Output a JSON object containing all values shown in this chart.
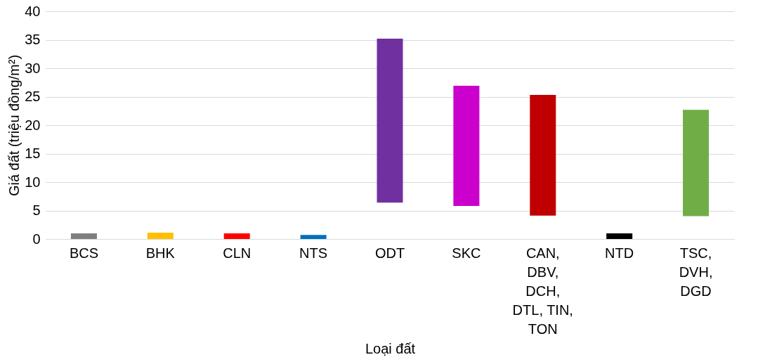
{
  "chart_data": {
    "type": "bar",
    "xlabel": "Loại đất",
    "ylabel": "Giá đất (triệu đồng/m²)",
    "categories": [
      "BCS",
      "BHK",
      "CLN",
      "NTS",
      "ODT",
      "SKC",
      "CAN, DBV, DCH, DTL, TIN, TON",
      "NTD",
      "TSC, DVH, DGD"
    ],
    "values": [
      1.0,
      1.1,
      1.0,
      0.7,
      28.8,
      21.1,
      21.2,
      1.0,
      18.7
    ],
    "base": [
      0,
      0,
      0,
      0,
      6.4,
      5.8,
      4.1,
      0,
      4.0
    ],
    "colors": [
      "#7f7f7f",
      "#ffc000",
      "#ff0000",
      "#0070c0",
      "#7030a0",
      "#cc00cc",
      "#c00000",
      "#000000",
      "#70ad47"
    ],
    "ylim": [
      0,
      40
    ],
    "yticks": [
      0,
      5,
      10,
      15,
      20,
      25,
      30,
      35,
      40
    ],
    "grid": "y"
  }
}
